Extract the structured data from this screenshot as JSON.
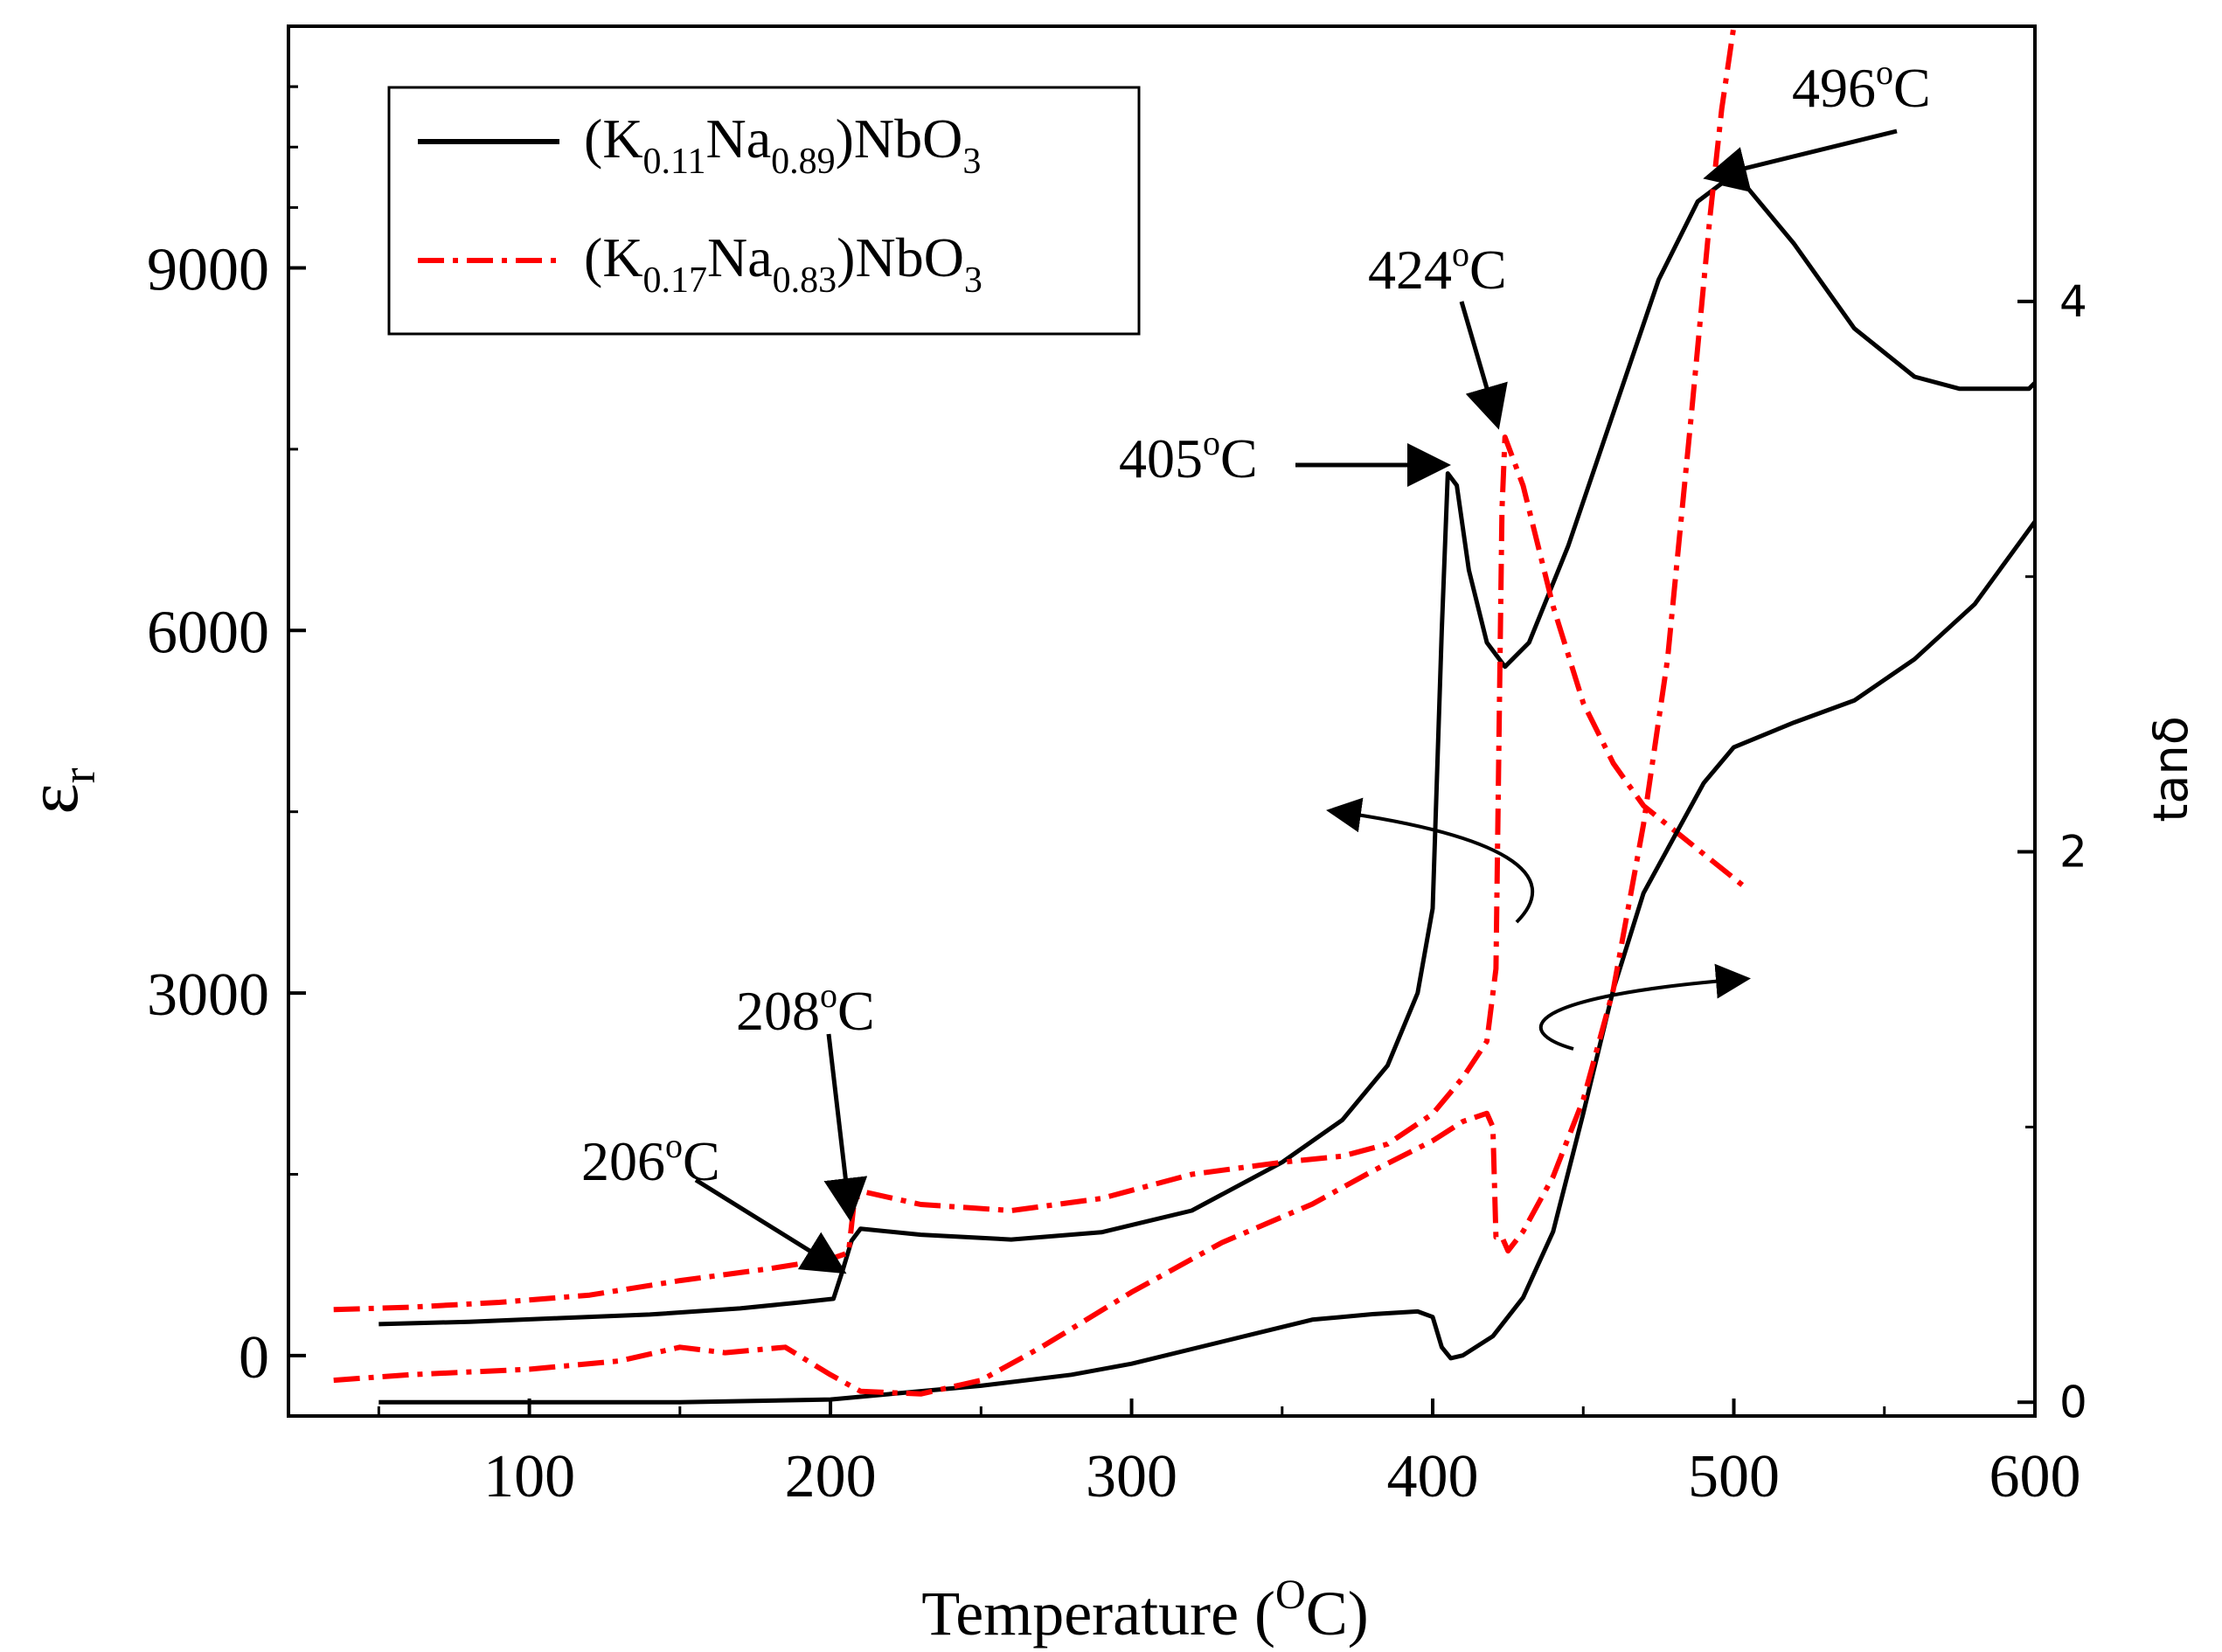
{
  "colors": {
    "black": "#000000",
    "red": "#ff0000"
  },
  "chart_data": {
    "type": "line",
    "xlabel": {
      "main": "Temperature (",
      "sup": "O",
      "tail": "C)"
    },
    "ylabel_left": {
      "main": "ε",
      "sub": "r"
    },
    "ylabel_right": "tanδ",
    "xlim": [
      20,
      600
    ],
    "ylim_left": [
      -500,
      11000
    ],
    "ylim_right": [
      -0.05,
      5.0
    ],
    "x_ticks": [
      100,
      200,
      300,
      400,
      500,
      600
    ],
    "y_left_ticks": [
      0,
      3000,
      6000,
      9000
    ],
    "y_right_ticks": [
      0,
      2,
      4
    ],
    "legend": {
      "position": "top-left",
      "entries": [
        {
          "prefix": "(K",
          "s1": "0.11",
          "mid": "Na",
          "s2": "0.89",
          "tail": ")NbO",
          "s3": "3",
          "color": "#000000",
          "style": "solid"
        },
        {
          "prefix": "(K",
          "s1": "0.17",
          "mid": "Na",
          "s2": "0.83",
          "tail": ")NbO",
          "s3": "3",
          "color": "#ff0000",
          "style": "dashdot"
        }
      ]
    },
    "series": [
      {
        "name": "(K0.11Na0.89)NbO3 εr",
        "axis": "left",
        "color": "#000000",
        "style": "solid",
        "x": [
          50,
          80,
          110,
          140,
          170,
          190,
          201,
          204,
          207,
          210,
          230,
          260,
          290,
          320,
          350,
          370,
          385,
          395,
          400,
          403,
          405,
          408,
          412,
          418,
          424,
          432,
          445,
          460,
          475,
          488,
          496,
          505,
          520,
          540,
          560,
          575,
          590,
          598,
          600
        ],
        "y": [
          260,
          280,
          310,
          340,
          390,
          440,
          470,
          700,
          950,
          1050,
          1000,
          960,
          1020,
          1200,
          1600,
          1950,
          2400,
          3000,
          3700,
          6000,
          7300,
          7200,
          6500,
          5900,
          5700,
          5900,
          6700,
          7800,
          8900,
          9550,
          9700,
          9650,
          9200,
          8500,
          8100,
          8000,
          8000,
          8000,
          8050
        ]
      },
      {
        "name": "(K0.17Na0.83)NbO3 εr",
        "axis": "left",
        "color": "#ff0000",
        "style": "dashdot",
        "x": [
          35,
          60,
          90,
          120,
          150,
          180,
          200,
          206,
          208,
          212,
          230,
          260,
          290,
          320,
          350,
          370,
          385,
          400,
          410,
          418,
          421,
          423,
          424,
          430,
          440,
          450,
          460,
          470,
          480,
          490,
          500,
          505
        ],
        "y": [
          380,
          400,
          440,
          500,
          620,
          720,
          800,
          850,
          1300,
          1350,
          1250,
          1200,
          1300,
          1500,
          1600,
          1650,
          1750,
          2000,
          2300,
          2600,
          3200,
          7000,
          7600,
          7200,
          6200,
          5400,
          4900,
          4550,
          4350,
          4150,
          3950,
          3850
        ]
      },
      {
        "name": "(K0.11Na0.89)NbO3 tanδ",
        "axis": "right",
        "color": "#000000",
        "style": "solid",
        "x": [
          50,
          100,
          150,
          200,
          220,
          250,
          280,
          300,
          330,
          360,
          380,
          395,
          400,
          403,
          406,
          410,
          420,
          430,
          440,
          450,
          460,
          470,
          480,
          490,
          500,
          520,
          540,
          560,
          580,
          600
        ],
        "y": [
          0.0,
          0.0,
          0.0,
          0.01,
          0.03,
          0.06,
          0.1,
          0.14,
          0.22,
          0.3,
          0.32,
          0.33,
          0.31,
          0.2,
          0.16,
          0.17,
          0.24,
          0.38,
          0.62,
          1.05,
          1.5,
          1.85,
          2.05,
          2.25,
          2.38,
          2.47,
          2.55,
          2.7,
          2.9,
          3.2
        ]
      },
      {
        "name": "(K0.17Na0.83)NbO3 tanδ",
        "axis": "right",
        "color": "#ff0000",
        "style": "dashdot",
        "x": [
          35,
          60,
          100,
          130,
          150,
          165,
          185,
          200,
          210,
          230,
          250,
          270,
          300,
          330,
          360,
          380,
          400,
          410,
          418,
          420,
          421,
          423,
          425,
          430,
          440,
          450,
          460,
          470,
          478,
          486,
          492,
          496,
          500
        ],
        "y": [
          0.08,
          0.1,
          0.12,
          0.15,
          0.2,
          0.18,
          0.2,
          0.1,
          0.04,
          0.03,
          0.08,
          0.2,
          0.4,
          0.58,
          0.72,
          0.84,
          0.95,
          1.02,
          1.05,
          1.0,
          0.6,
          0.6,
          0.55,
          0.62,
          0.82,
          1.1,
          1.5,
          2.1,
          2.7,
          3.6,
          4.3,
          4.7,
          5.0
        ]
      }
    ],
    "annotations": [
      {
        "text": "206",
        "tail": "C",
        "x": 206,
        "y": 850,
        "axis": "left"
      },
      {
        "text": "208",
        "tail": "C",
        "x": 208,
        "y": 1100,
        "axis": "left"
      },
      {
        "text": "405",
        "tail": "C",
        "x": 405,
        "y": 7300,
        "axis": "left"
      },
      {
        "text": "424",
        "tail": "C",
        "x": 424,
        "y": 7600,
        "axis": "left"
      },
      {
        "text": "496",
        "tail": "C",
        "x": 496,
        "y": 9700,
        "axis": "left"
      }
    ],
    "degree_symbol": "o"
  }
}
